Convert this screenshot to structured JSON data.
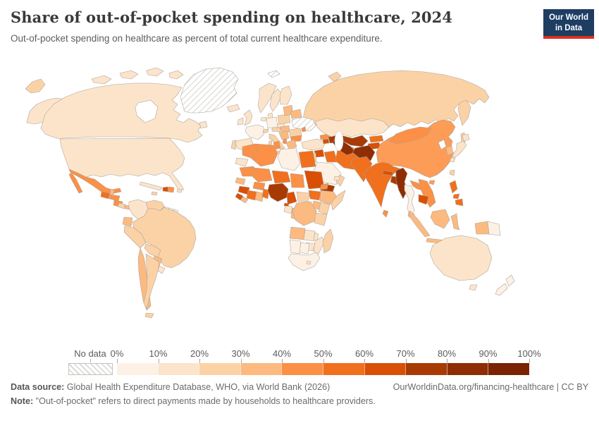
{
  "header": {
    "title": "Share of out-of-pocket spending on healthcare, 2024",
    "subtitle": "Out-of-pocket spending on healthcare as percent of total current healthcare expenditure.",
    "logo_line1": "Our World",
    "logo_line2": "in Data"
  },
  "brand": {
    "navy": "#1d3d63",
    "red": "#dc2f22"
  },
  "legend": {
    "no_data_label": "No data",
    "tick_labels": [
      "0%",
      "10%",
      "20%",
      "30%",
      "40%",
      "50%",
      "60%",
      "70%",
      "80%",
      "90%",
      "100%"
    ],
    "colors": [
      "#fdf1e5",
      "#fce4ca",
      "#fbd2a6",
      "#fcba80",
      "#fb9046",
      "#f0701d",
      "#d94f05",
      "#a83b03",
      "#8f2d04",
      "#7a2404"
    ],
    "label_color": "#5b5b5b"
  },
  "map": {
    "ocean_color": "#ffffff",
    "border_color": "#a9a29b",
    "no_data_hatch_color": "#d2cdc7",
    "regions": {
      "canada": 2,
      "usa": 2,
      "alaska": 2,
      "greenland": "no-data",
      "mexico": 5,
      "guatemala": 6,
      "belize": 4,
      "honduras": 5,
      "nicaragua": 5,
      "costa-rica": 3,
      "panama": 4,
      "cuba": 2,
      "jamaica": 3,
      "haiti": 7,
      "dominican-republic": 5,
      "puerto-rico": 2,
      "colombia": 2,
      "venezuela": 3,
      "guyana": "no-data",
      "suriname": 1,
      "ecuador": 4,
      "peru": 3,
      "brazil": 3,
      "bolivia": 3,
      "paraguay": 4,
      "chile": 4,
      "argentina": 3,
      "uruguay": 2,
      "iceland": 2,
      "norway": 2,
      "sweden": 2,
      "finland": 2,
      "denmark": 2,
      "uk": 2,
      "ireland": 2,
      "netherlands": 2,
      "germany": 1,
      "france": 1,
      "switzerland": 3,
      "czechia": 2,
      "austria": 3,
      "hungary": 4,
      "poland": 3,
      "baltic-states": 4,
      "belarus": 4,
      "ukraine": "no-data",
      "moldova": 5,
      "romania": 3,
      "bulgaria": 5,
      "balkans": 4,
      "albania": 5,
      "greece": 4,
      "italy": 3,
      "spain": 2,
      "portugal": 3,
      "turkey": 2,
      "russia": 3,
      "svalbard": "no-data",
      "georgia": 5,
      "armenia": 7,
      "azerbaijan": 8,
      "syria": 7,
      "iraq": 6,
      "iran": 6,
      "jordan-israel": 3,
      "saudi-arabia": 1,
      "yemen": 8,
      "oman": 3,
      "uae": 2,
      "egypt": 6,
      "libya": 1,
      "tunisia": 5,
      "algeria": 5,
      "morocco": 5,
      "western-sahara": 2,
      "kazakhstan": 2,
      "uzbekistan": 8,
      "turkmenistan": 9,
      "kyrgyzstan": 6,
      "tajikistan": 7,
      "afghanistan": 9,
      "pakistan": 6,
      "india": 6,
      "nepal": 7,
      "bhutan": 4,
      "bangladesh": 8,
      "sri-lanka": 5,
      "myanmar": 9,
      "thailand": 1,
      "laos": 5,
      "vietnam": 5,
      "cambodia": 7,
      "malaysia": 4,
      "indonesia": 4,
      "philippines": 6,
      "taiwan": 3,
      "china": "#fc9c57",
      "mongolia": 5,
      "north-korea": "#ffffff",
      "south-korea": 4,
      "japan": 2,
      "papua-new-guinea": 1,
      "australia": 2,
      "new-zealand": 1,
      "mauritania": 5,
      "mali": 5,
      "niger": 6,
      "chad": 5,
      "sudan": 7,
      "eritrea": 5,
      "senegal": 4,
      "guinea": 7,
      "sierra-leone": 7,
      "liberia": 4,
      "ivory-coast": 6,
      "ghana": 4,
      "burkina-faso": 5,
      "togo-benin": 6,
      "nigeria": 8,
      "cameroon": 7,
      "central-african-republic": 3,
      "south-sudan": 6,
      "ethiopia": 4,
      "somalia": 3,
      "kenya": 3,
      "uganda": 4,
      "rwanda-burundi": 4,
      "drc": 4,
      "gabon": 2,
      "congo": 4,
      "equatorial-guinea": 7,
      "tanzania": 3,
      "angola": 4,
      "zambia": 2,
      "malawi": 2,
      "mozambique": 2,
      "zimbabwe": 2,
      "namibia": 1,
      "botswana": 1,
      "south-africa": 1,
      "lesotho": 2,
      "madagascar": 3
    }
  },
  "footer": {
    "source_label": "Data source:",
    "source_text": " Global Health Expenditure Database, WHO, via World Bank (2026)",
    "attribution": "OurWorldinData.org/financing-healthcare | CC BY",
    "note_label": "Note:",
    "note_text": " \"Out-of-pocket\" refers to direct payments made by households to healthcare providers."
  },
  "chart_data": {
    "type": "choropleth",
    "title": "Share of out-of-pocket spending on healthcare, 2024",
    "unit": "% of total current healthcare expenditure",
    "legend_position": "bottom",
    "bins": [
      "0-10%",
      "10-20%",
      "20-30%",
      "30-40%",
      "40-50%",
      "50-60%",
      "60-70%",
      "70-80%",
      "80-90%",
      "90-100%"
    ],
    "no_data": [
      "Greenland",
      "Ukraine",
      "North Korea",
      "Guyana",
      "Svalbard"
    ],
    "entities": {
      "United States": "10-20%",
      "Canada": "10-20%",
      "Mexico": "40-50%",
      "Guatemala": "50-60%",
      "Honduras": "40-50%",
      "Nicaragua": "40-50%",
      "Costa Rica": "20-30%",
      "Panama": "30-40%",
      "Cuba": "10-20%",
      "Haiti": "60-70%",
      "Colombia": "10-20%",
      "Venezuela": "20-30%",
      "Ecuador": "30-40%",
      "Peru": "20-30%",
      "Brazil": "20-30%",
      "Bolivia": "20-30%",
      "Paraguay": "30-40%",
      "Chile": "30-40%",
      "Argentina": "20-30%",
      "Uruguay": "10-20%",
      "United Kingdom": "10-20%",
      "France": "0-10%",
      "Germany": "0-10%",
      "Spain": "10-20%",
      "Italy": "20-30%",
      "Norway": "10-20%",
      "Sweden": "10-20%",
      "Poland": "20-30%",
      "Russia": "20-30%",
      "Greece": "30-40%",
      "Albania": "40-50%",
      "Turkey": "10-20%",
      "Morocco": "40-50%",
      "Algeria": "40-50%",
      "Libya": "0-10%",
      "Egypt": "50-60%",
      "Niger": "50-60%",
      "Chad": "40-50%",
      "Sudan": "60-70%",
      "Nigeria": "70-80%",
      "Cameroon": "60-70%",
      "Ghana": "30-40%",
      "Ethiopia": "30-40%",
      "Kenya": "20-30%",
      "DR Congo": "30-40%",
      "Angola": "30-40%",
      "Zambia": "10-20%",
      "Mozambique": "10-20%",
      "Namibia": "0-10%",
      "Botswana": "0-10%",
      "South Africa": "0-10%",
      "Madagascar": "20-30%",
      "Saudi Arabia": "0-10%",
      "Yemen": "70-80%",
      "Syria": "60-70%",
      "Iraq": "50-60%",
      "Iran": "50-60%",
      "Israel": "20-30%",
      "Georgia": "40-50%",
      "Armenia": "60-70%",
      "Azerbaijan": "70-80%",
      "Kazakhstan": "10-20%",
      "Uzbekistan": "70-80%",
      "Turkmenistan": "80-90%",
      "Afghanistan": "80-90%",
      "Pakistan": "50-60%",
      "India": "50-60%",
      "Nepal": "60-70%",
      "Bangladesh": "70-80%",
      "Sri Lanka": "40-50%",
      "Myanmar": "80-90%",
      "Thailand": "0-10%",
      "Laos": "40-50%",
      "Vietnam": "40-50%",
      "Cambodia": "60-70%",
      "Malaysia": "30-40%",
      "Indonesia": "30-40%",
      "Philippines": "50-60%",
      "China": "30-40%",
      "Mongolia": "40-50%",
      "South Korea": "30-40%",
      "Japan": "10-20%",
      "Papua New Guinea": "0-10%",
      "Australia": "10-20%",
      "New Zealand": "0-10%"
    }
  }
}
